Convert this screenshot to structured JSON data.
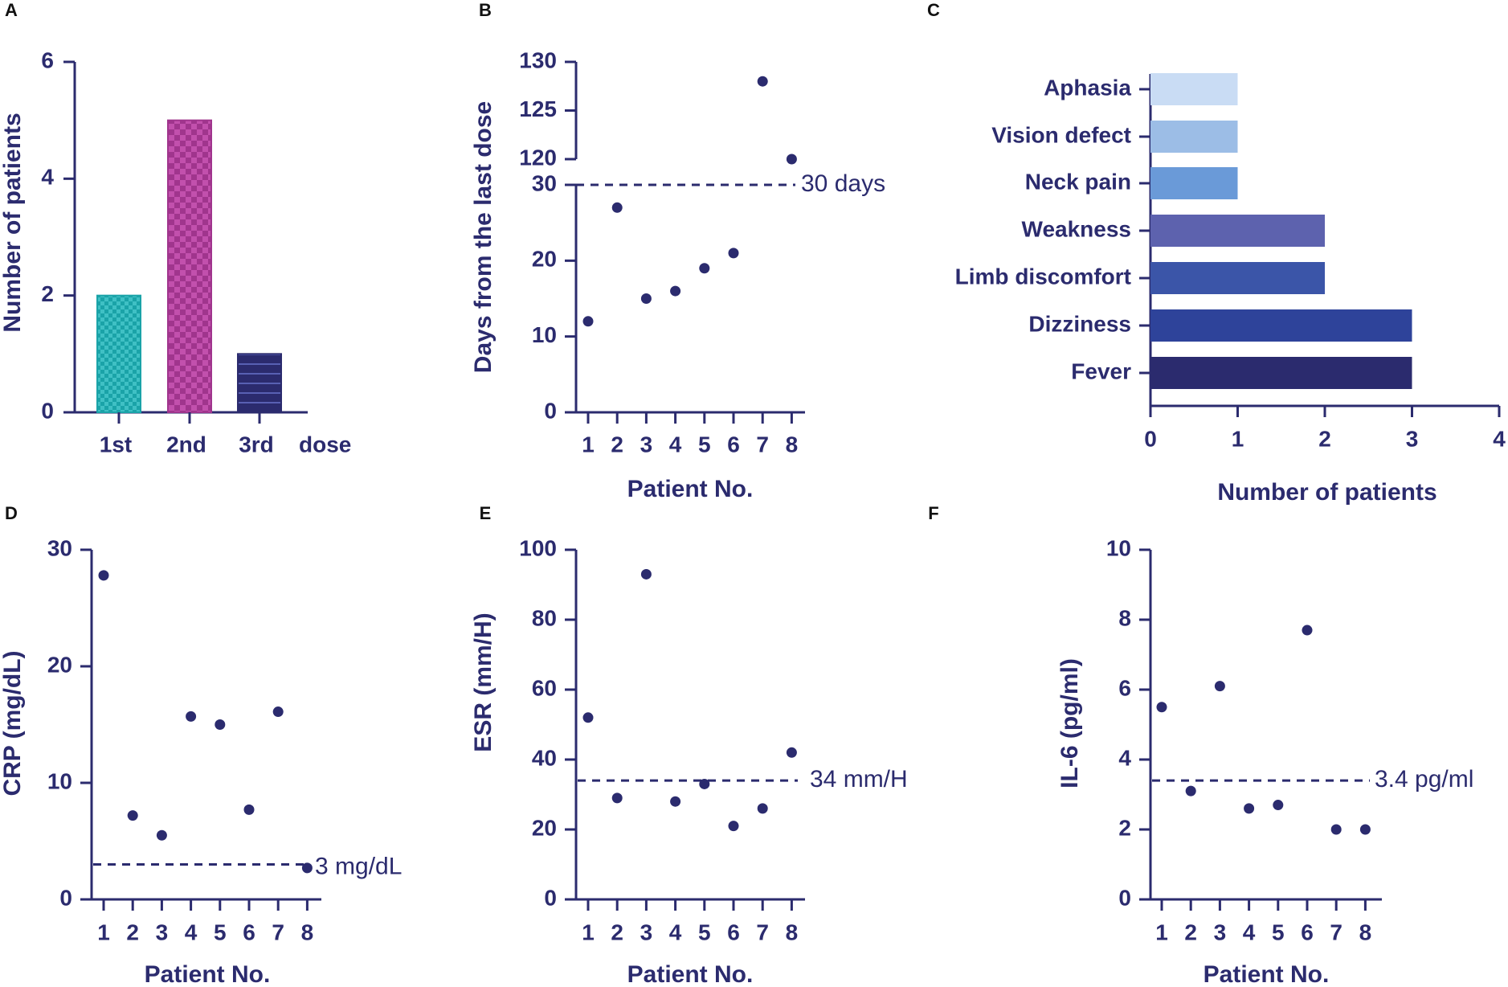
{
  "colors": {
    "axis": "#2b2b6e",
    "dot": "#2b2b6e",
    "bar_a": [
      "#1aa3a8",
      "#a0358d",
      "#2b2b6e"
    ],
    "bar_c": [
      "#c9dcf4",
      "#9cbde6",
      "#6a9ad8",
      "#5d62ae",
      "#3b55a8",
      "#2e439a",
      "#2b2b6e"
    ]
  },
  "chart_data": [
    {
      "panel": "A",
      "type": "bar",
      "categories": [
        "1st",
        "2nd",
        "3rd"
      ],
      "values": [
        2,
        5,
        1
      ],
      "extra_label": "dose",
      "ylabel": "Number of patients",
      "ylim": [
        0,
        6
      ],
      "yticks": [
        "0",
        "2",
        "4",
        "6"
      ]
    },
    {
      "panel": "B",
      "type": "scatter",
      "x": [
        1,
        2,
        3,
        4,
        5,
        6,
        7,
        8
      ],
      "y": [
        12,
        27,
        15,
        16,
        19,
        21,
        128,
        120
      ],
      "xticks": [
        "1",
        "2",
        "3",
        "4",
        "5",
        "6",
        "7",
        "8"
      ],
      "xlabel": "Patient No.",
      "ylabel": "Days from the last dose",
      "ylim_lower": [
        0,
        30
      ],
      "ylim_upper": [
        120,
        130
      ],
      "yticks_lower": [
        "0",
        "10",
        "20",
        "30"
      ],
      "yticks_upper": [
        "120",
        "125",
        "130"
      ],
      "reference_value": 30,
      "reference_label": "30 days"
    },
    {
      "panel": "C",
      "type": "bar",
      "orientation": "horizontal",
      "categories": [
        "Aphasia",
        "Vision defect",
        "Neck pain",
        "Weakness",
        "Limb discomfort",
        "Dizziness",
        "Fever"
      ],
      "values": [
        1,
        1,
        1,
        2,
        2,
        3,
        3
      ],
      "xlabel": "Number of patients",
      "xlim": [
        0,
        4
      ],
      "xticks": [
        "0",
        "1",
        "2",
        "3",
        "4"
      ]
    },
    {
      "panel": "D",
      "type": "scatter",
      "x": [
        1,
        2,
        3,
        4,
        5,
        6,
        7,
        8
      ],
      "y": [
        27.8,
        7.2,
        5.5,
        15.7,
        15.0,
        7.7,
        16.1,
        2.7
      ],
      "xticks": [
        "1",
        "2",
        "3",
        "4",
        "5",
        "6",
        "7",
        "8"
      ],
      "xlabel": "Patient No.",
      "ylabel": "CRP (mg/dL)",
      "ylim": [
        0,
        30
      ],
      "yticks": [
        "0",
        "10",
        "20",
        "30"
      ],
      "reference_value": 3,
      "reference_label": "3 mg/dL"
    },
    {
      "panel": "E",
      "type": "scatter",
      "x": [
        1,
        2,
        3,
        4,
        5,
        6,
        7,
        8
      ],
      "y": [
        52,
        29,
        93,
        28,
        33,
        21,
        26,
        42
      ],
      "xticks": [
        "1",
        "2",
        "3",
        "4",
        "5",
        "6",
        "7",
        "8"
      ],
      "xlabel": "Patient No.",
      "ylabel": "ESR (mm/H)",
      "ylim": [
        0,
        100
      ],
      "yticks": [
        "0",
        "20",
        "40",
        "60",
        "80",
        "100"
      ],
      "reference_value": 34,
      "reference_label": "34 mm/H"
    },
    {
      "panel": "F",
      "type": "scatter",
      "x": [
        1,
        2,
        3,
        4,
        5,
        6,
        7,
        8
      ],
      "y": [
        5.5,
        3.1,
        6.1,
        2.6,
        2.7,
        7.7,
        2.0,
        2.0
      ],
      "xticks": [
        "1",
        "2",
        "3",
        "4",
        "5",
        "6",
        "7",
        "8"
      ],
      "xlabel": "Patient No.",
      "ylabel": "IL-6 (pg/ml)",
      "ylim": [
        0,
        10
      ],
      "yticks": [
        "0",
        "2",
        "4",
        "6",
        "8",
        "10"
      ],
      "reference_value": 3.4,
      "reference_label": "3.4 pg/ml"
    }
  ]
}
